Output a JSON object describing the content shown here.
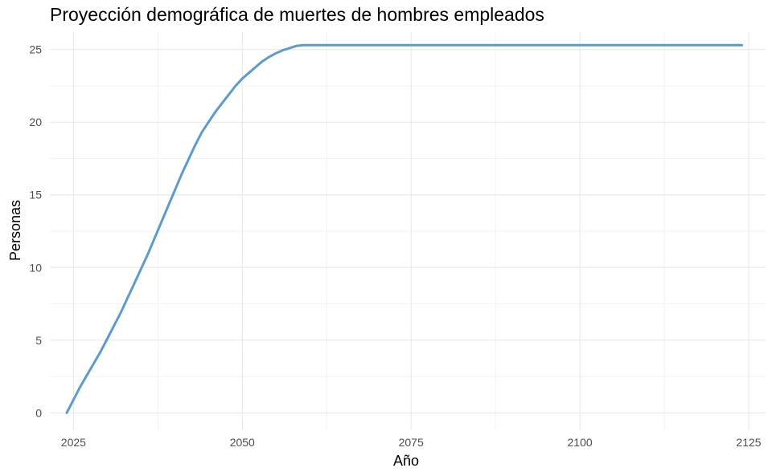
{
  "chart_data": {
    "type": "line",
    "title": "Proyección demográfica de muertes de hombres empleados",
    "xlabel": "Año",
    "ylabel": "Personas",
    "xlim": [
      2021.5,
      2127.5
    ],
    "ylim": [
      -1.2,
      26.2
    ],
    "x_ticks": [
      2025,
      2050,
      2075,
      2100,
      2125
    ],
    "y_ticks": [
      0,
      5,
      10,
      15,
      20,
      25
    ],
    "grid": true,
    "legend": "none",
    "series": [
      {
        "color": "#5b9bd0",
        "points": [
          [
            2024,
            0.0
          ],
          [
            2025,
            0.9
          ],
          [
            2026,
            1.8
          ],
          [
            2027,
            2.6
          ],
          [
            2028,
            3.4
          ],
          [
            2029,
            4.2
          ],
          [
            2030,
            5.1
          ],
          [
            2031,
            6.0
          ],
          [
            2032,
            6.9
          ],
          [
            2033,
            7.9
          ],
          [
            2034,
            8.9
          ],
          [
            2035,
            9.9
          ],
          [
            2036,
            10.9
          ],
          [
            2037,
            12.0
          ],
          [
            2038,
            13.1
          ],
          [
            2039,
            14.2
          ],
          [
            2040,
            15.3
          ],
          [
            2041,
            16.4
          ],
          [
            2042,
            17.4
          ],
          [
            2043,
            18.4
          ],
          [
            2044,
            19.3
          ],
          [
            2045,
            20.0
          ],
          [
            2046,
            20.7
          ],
          [
            2047,
            21.3
          ],
          [
            2048,
            21.9
          ],
          [
            2049,
            22.5
          ],
          [
            2050,
            23.0
          ],
          [
            2051,
            23.4
          ],
          [
            2052,
            23.8
          ],
          [
            2053,
            24.2
          ],
          [
            2054,
            24.5
          ],
          [
            2055,
            24.75
          ],
          [
            2056,
            24.95
          ],
          [
            2057,
            25.1
          ],
          [
            2058,
            25.25
          ],
          [
            2059,
            25.3
          ],
          [
            2060,
            25.3
          ],
          [
            2070,
            25.3
          ],
          [
            2080,
            25.3
          ],
          [
            2090,
            25.3
          ],
          [
            2100,
            25.3
          ],
          [
            2110,
            25.3
          ],
          [
            2120,
            25.3
          ],
          [
            2124,
            25.3
          ]
        ]
      }
    ]
  }
}
